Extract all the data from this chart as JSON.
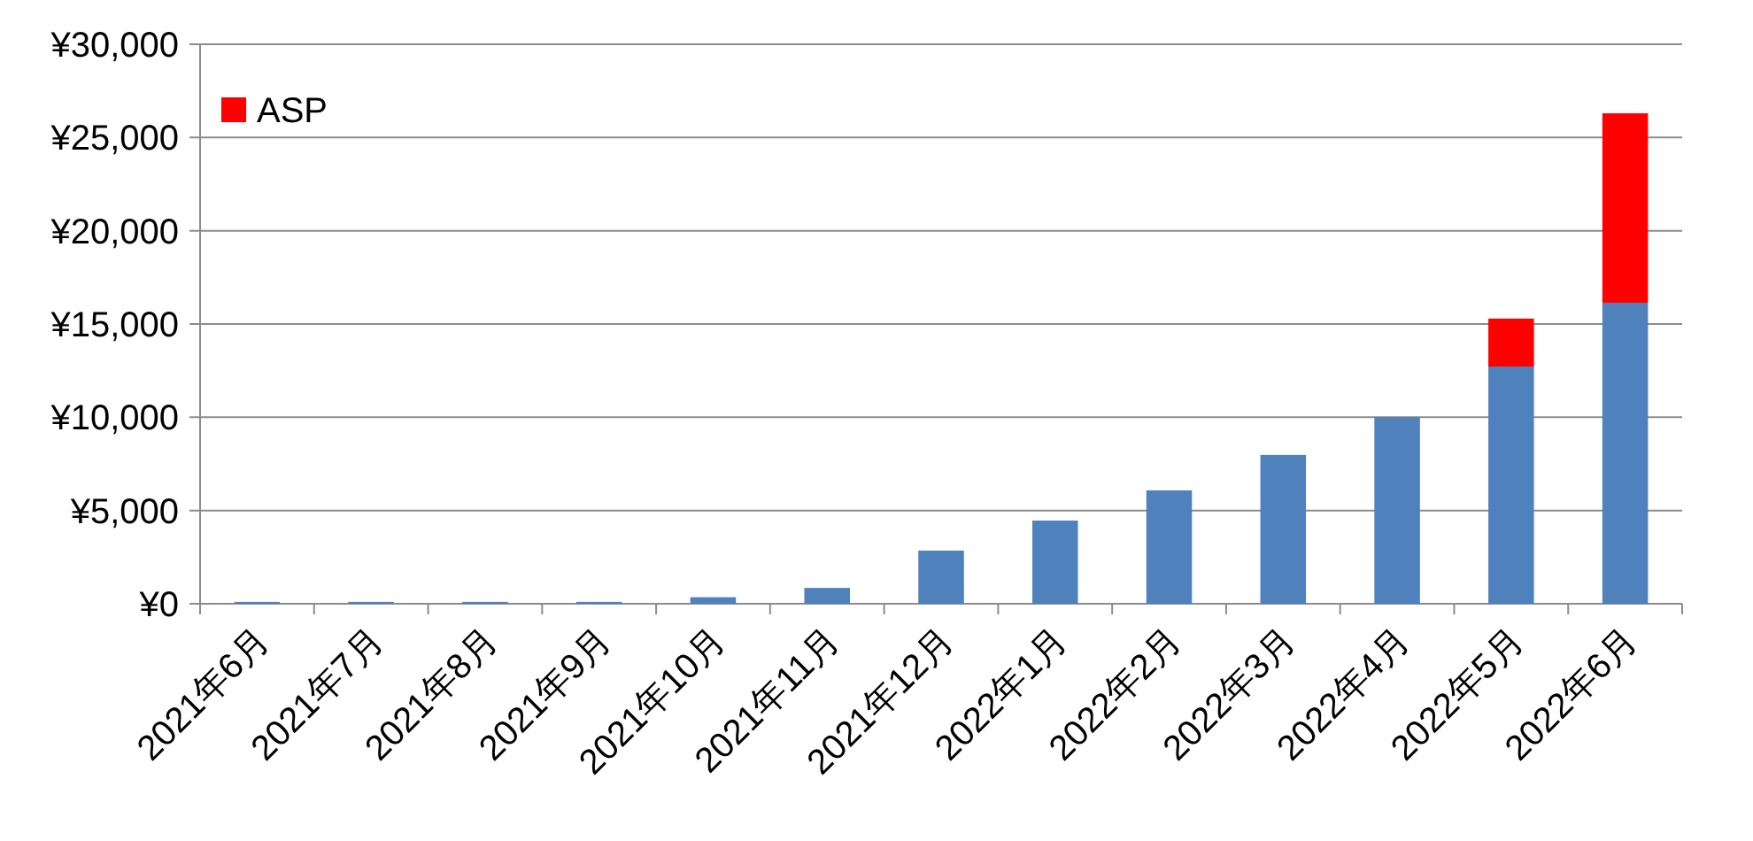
{
  "chart_data": {
    "type": "bar",
    "stacked": true,
    "categories": [
      "2021年6月",
      "2021年7月",
      "2021年8月",
      "2021年9月",
      "2021年10月",
      "2021年11月",
      "2021年12月",
      "2022年1月",
      "2022年2月",
      "2022年3月",
      "2022年4月",
      "2022年5月",
      "2022年6月"
    ],
    "series": [
      {
        "color": "#4f81bd",
        "values": [
          100,
          100,
          100,
          100,
          350,
          850,
          2850,
          4460,
          6080,
          7980,
          10000,
          12720,
          16140
        ]
      },
      {
        "name": "ASP",
        "color": "#ff0000",
        "values": [
          0,
          0,
          0,
          0,
          0,
          0,
          0,
          0,
          0,
          0,
          0,
          2570,
          10160
        ]
      }
    ],
    "ylim": [
      0,
      30000
    ],
    "yticks": [
      {
        "value": 0,
        "label": "¥0"
      },
      {
        "value": 5000,
        "label": "¥5,000"
      },
      {
        "value": 10000,
        "label": "¥10,000"
      },
      {
        "value": 15000,
        "label": "¥15,000"
      },
      {
        "value": 20000,
        "label": "¥20,000"
      },
      {
        "value": 25000,
        "label": "¥25,000"
      },
      {
        "value": 30000,
        "label": "¥30,000"
      }
    ],
    "grid": "y",
    "legend": "top left"
  }
}
